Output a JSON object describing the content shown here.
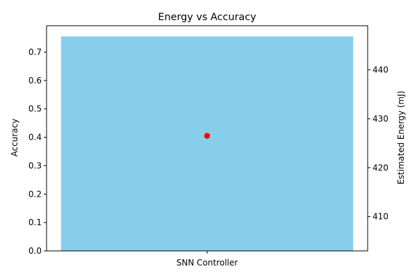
{
  "chart_data": {
    "type": "bar",
    "title": "Energy vs Accuracy",
    "categories": [
      "SNN Controller"
    ],
    "xlabel": "",
    "grid": false,
    "legend": "none",
    "series": [
      {
        "kind": "bar",
        "axis": "left",
        "values": [
          0.755
        ],
        "color": "#87CEEB"
      },
      {
        "kind": "point",
        "axis": "right",
        "values": [
          426.5
        ],
        "color": "#FF0000"
      }
    ],
    "y_left": {
      "label": "Accuracy",
      "lim": [
        0,
        0.793
      ],
      "ticks": [
        0.0,
        0.1,
        0.2,
        0.3,
        0.4,
        0.5,
        0.6,
        0.7
      ],
      "tick_labels": [
        "0.0",
        "0.1",
        "0.2",
        "0.3",
        "0.4",
        "0.5",
        "0.6",
        "0.7"
      ]
    },
    "y_right": {
      "label": "Estimated Energy (mJ)",
      "lim": [
        403.0,
        449.0
      ],
      "ticks": [
        410,
        420,
        430,
        440
      ],
      "tick_labels": [
        "410",
        "420",
        "430",
        "440"
      ]
    }
  }
}
